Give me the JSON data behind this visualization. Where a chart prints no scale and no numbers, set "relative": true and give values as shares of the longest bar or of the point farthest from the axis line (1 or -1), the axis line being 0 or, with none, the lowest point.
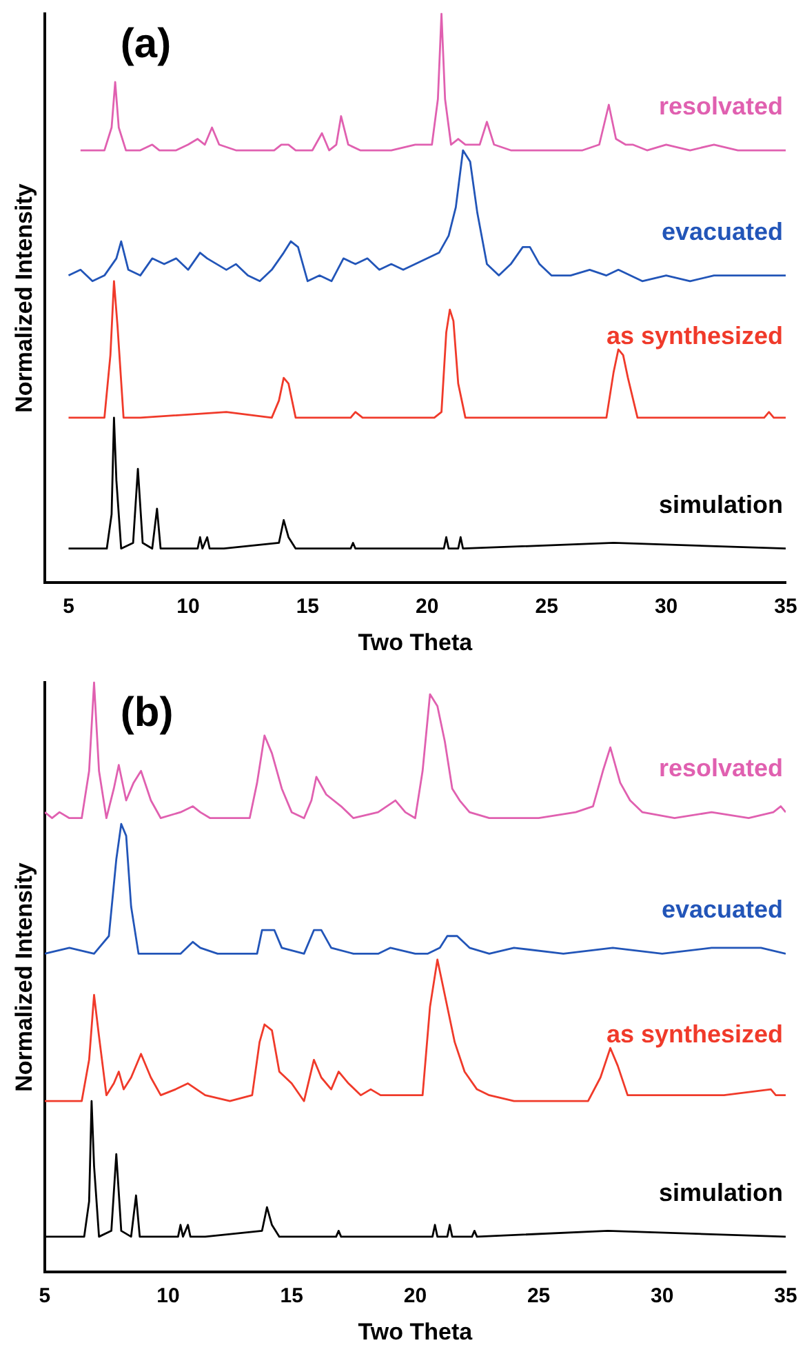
{
  "chart_data": [
    {
      "type": "line",
      "relative": true,
      "xlabel": "Two Theta",
      "ylabel": "Normalized Intensity",
      "annotations": [
        "(a)"
      ],
      "xlim": [
        4,
        35
      ],
      "xticks": [
        5,
        10,
        15,
        20,
        25,
        30,
        35
      ],
      "tick_labels": "x",
      "line_style": "solid",
      "series": [
        {
          "name": "resolvated",
          "color": "#e060b0",
          "x": [
            5.5,
            6.5,
            6.8,
            6.95,
            7.1,
            7.4,
            8.0,
            8.5,
            8.8,
            9.5,
            10.0,
            10.4,
            10.7,
            11.0,
            11.3,
            12.0,
            13.0,
            13.6,
            13.9,
            14.2,
            14.5,
            15.2,
            15.6,
            15.9,
            16.2,
            16.4,
            16.7,
            17.2,
            18.5,
            19.5,
            20.2,
            20.45,
            20.6,
            20.75,
            21.0,
            21.3,
            21.6,
            22.2,
            22.5,
            22.8,
            23.5,
            25.0,
            26.5,
            27.2,
            27.6,
            27.9,
            28.3,
            28.6,
            29.2,
            30.0,
            31.0,
            32.0,
            33.0,
            34.0,
            35.0
          ],
          "values": [
            0.76,
            0.76,
            0.8,
            0.88,
            0.8,
            0.76,
            0.76,
            0.77,
            0.76,
            0.76,
            0.77,
            0.78,
            0.77,
            0.8,
            0.77,
            0.76,
            0.76,
            0.76,
            0.77,
            0.77,
            0.76,
            0.76,
            0.79,
            0.76,
            0.77,
            0.82,
            0.77,
            0.76,
            0.76,
            0.77,
            0.77,
            0.85,
            1.0,
            0.85,
            0.77,
            0.78,
            0.77,
            0.77,
            0.81,
            0.77,
            0.76,
            0.76,
            0.76,
            0.77,
            0.84,
            0.78,
            0.77,
            0.77,
            0.76,
            0.77,
            0.76,
            0.77,
            0.76,
            0.76,
            0.76
          ]
        },
        {
          "name": "evacuated",
          "color": "#2255b8",
          "x": [
            5.0,
            5.5,
            6.0,
            6.5,
            7.0,
            7.2,
            7.5,
            8.0,
            8.5,
            9.0,
            9.5,
            10.0,
            10.5,
            10.8,
            11.2,
            11.6,
            12.0,
            12.5,
            13.0,
            13.5,
            14.0,
            14.3,
            14.6,
            15.0,
            15.5,
            16.0,
            16.5,
            17.0,
            17.5,
            18.0,
            18.5,
            19.0,
            19.5,
            20.0,
            20.5,
            20.9,
            21.2,
            21.5,
            21.8,
            22.1,
            22.5,
            23.0,
            23.5,
            24.0,
            24.3,
            24.7,
            25.2,
            26.0,
            26.8,
            27.5,
            28.0,
            28.5,
            29.0,
            30.0,
            31.0,
            32.0,
            33.0,
            34.0,
            35.0
          ],
          "values": [
            0.54,
            0.55,
            0.53,
            0.54,
            0.57,
            0.6,
            0.55,
            0.54,
            0.57,
            0.56,
            0.57,
            0.55,
            0.58,
            0.57,
            0.56,
            0.55,
            0.56,
            0.54,
            0.53,
            0.55,
            0.58,
            0.6,
            0.59,
            0.53,
            0.54,
            0.53,
            0.57,
            0.56,
            0.57,
            0.55,
            0.56,
            0.55,
            0.56,
            0.57,
            0.58,
            0.61,
            0.66,
            0.76,
            0.74,
            0.65,
            0.56,
            0.54,
            0.56,
            0.59,
            0.59,
            0.56,
            0.54,
            0.54,
            0.55,
            0.54,
            0.55,
            0.54,
            0.53,
            0.54,
            0.53,
            0.54,
            0.54,
            0.54,
            0.54
          ]
        },
        {
          "name": "as synthesized",
          "color": "#f03a2a",
          "x": [
            5.0,
            6.5,
            6.75,
            6.9,
            7.05,
            7.3,
            8.0,
            11.6,
            13.5,
            13.8,
            14.0,
            14.2,
            14.5,
            16.8,
            17.0,
            17.3,
            20.3,
            20.6,
            20.8,
            20.95,
            21.1,
            21.3,
            21.6,
            23.0,
            27.5,
            27.8,
            28.0,
            28.2,
            28.4,
            28.8,
            34.1,
            34.3,
            34.5,
            35.0
          ],
          "values": [
            0.29,
            0.29,
            0.4,
            0.53,
            0.45,
            0.29,
            0.29,
            0.3,
            0.29,
            0.32,
            0.36,
            0.35,
            0.29,
            0.29,
            0.3,
            0.29,
            0.29,
            0.3,
            0.44,
            0.48,
            0.46,
            0.35,
            0.29,
            0.29,
            0.29,
            0.37,
            0.41,
            0.4,
            0.36,
            0.29,
            0.29,
            0.3,
            0.29,
            0.29
          ]
        },
        {
          "name": "simulation",
          "color": "#000000",
          "x": [
            5.0,
            6.6,
            6.8,
            6.9,
            7.0,
            7.2,
            7.7,
            7.9,
            8.1,
            8.5,
            8.7,
            8.85,
            9.2,
            10.4,
            10.5,
            10.6,
            10.8,
            10.9,
            11.5,
            13.8,
            14.0,
            14.2,
            14.5,
            16.8,
            16.9,
            17.0,
            20.7,
            20.8,
            20.9,
            21.3,
            21.4,
            21.5,
            27.8,
            35.0
          ],
          "values": [
            0.06,
            0.06,
            0.12,
            0.29,
            0.18,
            0.06,
            0.07,
            0.2,
            0.07,
            0.06,
            0.13,
            0.06,
            0.06,
            0.06,
            0.08,
            0.06,
            0.08,
            0.06,
            0.06,
            0.07,
            0.11,
            0.08,
            0.06,
            0.06,
            0.07,
            0.06,
            0.06,
            0.08,
            0.06,
            0.06,
            0.08,
            0.06,
            0.07,
            0.06
          ]
        }
      ]
    },
    {
      "type": "line",
      "relative": true,
      "xlabel": "Two Theta",
      "ylabel": "Normalized Intensity",
      "annotations": [
        "(b)"
      ],
      "xlim": [
        5,
        35
      ],
      "xticks": [
        5,
        10,
        15,
        20,
        25,
        30,
        35
      ],
      "tick_labels": "x",
      "line_style": "solid",
      "series": [
        {
          "name": "resolvated",
          "color": "#e060b0",
          "x": [
            5.0,
            5.3,
            5.6,
            6.0,
            6.5,
            6.8,
            7.0,
            7.2,
            7.5,
            7.8,
            8.0,
            8.3,
            8.6,
            8.9,
            9.3,
            9.7,
            10.5,
            11.0,
            11.3,
            11.7,
            12.5,
            13.3,
            13.6,
            13.9,
            14.2,
            14.6,
            15.0,
            15.5,
            15.8,
            16.0,
            16.4,
            17.0,
            17.5,
            18.5,
            19.2,
            19.6,
            20.0,
            20.3,
            20.6,
            20.9,
            21.2,
            21.5,
            21.8,
            22.2,
            23.0,
            25.0,
            26.5,
            27.2,
            27.6,
            27.9,
            28.3,
            28.7,
            29.2,
            30.5,
            32.0,
            33.5,
            34.5,
            34.8,
            35.0
          ],
          "values": [
            0.78,
            0.77,
            0.78,
            0.77,
            0.77,
            0.85,
            1.0,
            0.85,
            0.77,
            0.82,
            0.86,
            0.8,
            0.83,
            0.85,
            0.8,
            0.77,
            0.78,
            0.79,
            0.78,
            0.77,
            0.77,
            0.77,
            0.83,
            0.91,
            0.88,
            0.82,
            0.78,
            0.77,
            0.8,
            0.84,
            0.81,
            0.79,
            0.77,
            0.78,
            0.8,
            0.78,
            0.77,
            0.85,
            0.98,
            0.96,
            0.9,
            0.82,
            0.8,
            0.78,
            0.77,
            0.77,
            0.78,
            0.79,
            0.85,
            0.89,
            0.83,
            0.8,
            0.78,
            0.77,
            0.78,
            0.77,
            0.78,
            0.79,
            0.78
          ]
        },
        {
          "name": "evacuated",
          "color": "#2255b8",
          "x": [
            5.0,
            6.0,
            7.0,
            7.6,
            7.9,
            8.1,
            8.3,
            8.5,
            8.8,
            9.2,
            10.5,
            11.0,
            11.3,
            12.0,
            13.6,
            13.8,
            14.0,
            14.3,
            14.6,
            15.5,
            15.9,
            16.2,
            16.6,
            17.5,
            18.5,
            19.0,
            20.0,
            20.5,
            21.0,
            21.3,
            21.7,
            22.2,
            23.0,
            24.0,
            26.0,
            28.0,
            30.0,
            32.0,
            33.0,
            34.0,
            35.0
          ],
          "values": [
            0.54,
            0.55,
            0.54,
            0.57,
            0.7,
            0.76,
            0.74,
            0.62,
            0.54,
            0.54,
            0.54,
            0.56,
            0.55,
            0.54,
            0.54,
            0.58,
            0.58,
            0.58,
            0.55,
            0.54,
            0.58,
            0.58,
            0.55,
            0.54,
            0.54,
            0.55,
            0.54,
            0.54,
            0.55,
            0.57,
            0.57,
            0.55,
            0.54,
            0.55,
            0.54,
            0.55,
            0.54,
            0.55,
            0.55,
            0.55,
            0.54
          ]
        },
        {
          "name": "as synthesized",
          "color": "#f03a2a",
          "x": [
            5.0,
            6.5,
            6.8,
            7.0,
            7.2,
            7.5,
            7.8,
            8.0,
            8.2,
            8.5,
            8.9,
            9.3,
            9.7,
            10.3,
            10.8,
            11.5,
            12.5,
            13.4,
            13.7,
            13.9,
            14.2,
            14.5,
            15.0,
            15.5,
            15.9,
            16.2,
            16.6,
            16.9,
            17.3,
            17.8,
            18.2,
            18.6,
            20.3,
            20.6,
            20.9,
            21.2,
            21.6,
            22.0,
            22.5,
            23.0,
            24.0,
            27.0,
            27.5,
            27.9,
            28.2,
            28.6,
            30.0,
            32.5,
            34.4,
            34.6,
            35.0
          ],
          "values": [
            0.29,
            0.29,
            0.36,
            0.47,
            0.4,
            0.3,
            0.32,
            0.34,
            0.31,
            0.33,
            0.37,
            0.33,
            0.3,
            0.31,
            0.32,
            0.3,
            0.29,
            0.3,
            0.39,
            0.42,
            0.41,
            0.34,
            0.32,
            0.29,
            0.36,
            0.33,
            0.31,
            0.34,
            0.32,
            0.3,
            0.31,
            0.3,
            0.3,
            0.45,
            0.53,
            0.47,
            0.39,
            0.34,
            0.31,
            0.3,
            0.29,
            0.29,
            0.33,
            0.38,
            0.35,
            0.3,
            0.3,
            0.3,
            0.31,
            0.3,
            0.3
          ]
        },
        {
          "name": "simulation",
          "color": "#000000",
          "x": [
            5.0,
            6.6,
            6.8,
            6.9,
            7.0,
            7.2,
            7.7,
            7.9,
            8.1,
            8.5,
            8.7,
            8.85,
            9.2,
            10.4,
            10.5,
            10.6,
            10.8,
            10.9,
            11.5,
            13.8,
            14.0,
            14.2,
            14.5,
            16.8,
            16.9,
            17.0,
            20.7,
            20.8,
            20.9,
            21.3,
            21.4,
            21.5,
            22.3,
            22.4,
            22.5,
            27.8,
            35.0
          ],
          "values": [
            0.06,
            0.06,
            0.12,
            0.29,
            0.18,
            0.06,
            0.07,
            0.2,
            0.07,
            0.06,
            0.13,
            0.06,
            0.06,
            0.06,
            0.08,
            0.06,
            0.08,
            0.06,
            0.06,
            0.07,
            0.11,
            0.08,
            0.06,
            0.06,
            0.07,
            0.06,
            0.06,
            0.08,
            0.06,
            0.06,
            0.08,
            0.06,
            0.06,
            0.07,
            0.06,
            0.07,
            0.06
          ]
        }
      ]
    }
  ]
}
